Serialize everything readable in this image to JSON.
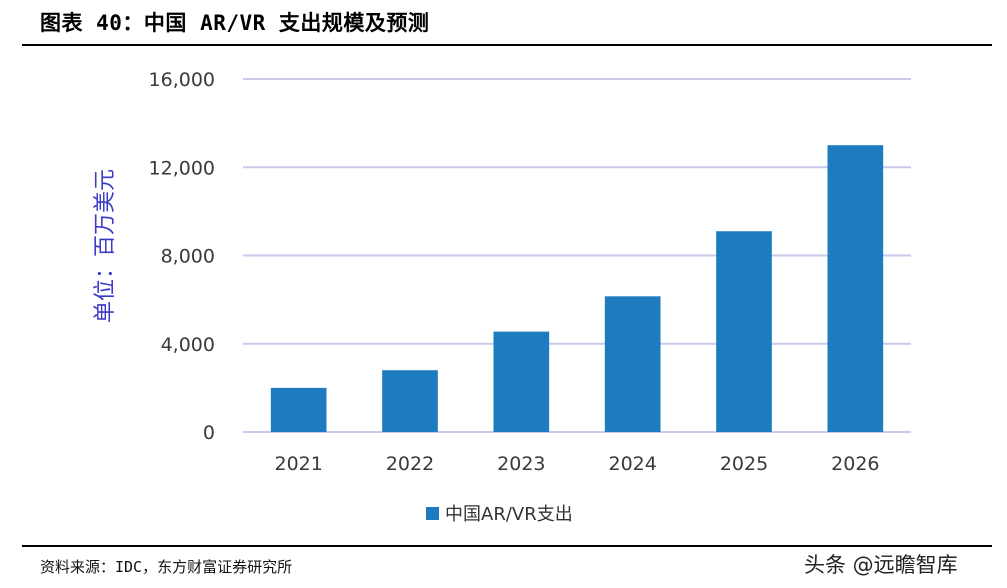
{
  "header": {
    "title": "图表 40：中国 AR/VR 支出规模及预测"
  },
  "footer": {
    "source": "资料来源：IDC，东方财富证券研究所",
    "watermark": "头条 @远瞻智库"
  },
  "colors": {
    "bar": "#1f7bc0",
    "grid": "#c9c9ee",
    "ylabel": "#3b3bc8"
  },
  "chart_data": {
    "type": "bar",
    "categories": [
      "2021",
      "2022",
      "2023",
      "2024",
      "2025",
      "2026"
    ],
    "series": [
      {
        "name": "中国AR/VR支出",
        "values": [
          2000,
          2800,
          4550,
          6150,
          9100,
          13000
        ]
      }
    ],
    "ylabel": "单位：百万美元",
    "ylim": [
      0,
      16000
    ],
    "yticks": [
      0,
      4000,
      8000,
      12000,
      16000
    ],
    "ytick_labels": [
      "0",
      "4,000",
      "8,000",
      "12,000",
      "16,000"
    ],
    "grid": true,
    "legend": "bottom-center"
  }
}
